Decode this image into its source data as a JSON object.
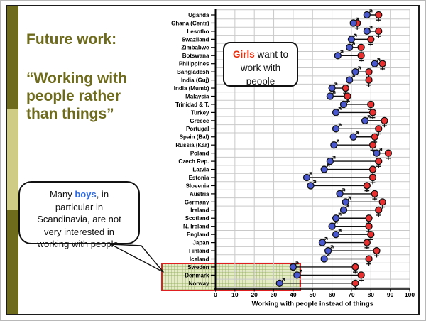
{
  "left_panel": {
    "title": "Future work:",
    "quote_lines": [
      "“Working with",
      "people rather",
      "than things”"
    ]
  },
  "speech_bubble": {
    "line1_pre": "Many ",
    "line1_bold": "boys",
    "line1_post": ", in",
    "line2": "particular in",
    "line3": "Scandinavia, are not",
    "line4": "very interested in",
    "line5": "working with people."
  },
  "girls_callout": {
    "line1_bold": "Girls",
    "line1_rest": " want to",
    "line2": "work with",
    "line3": "people"
  },
  "colors": {
    "accent_dark": "#6e6b1d",
    "accent_light": "#cfcc85",
    "boys_marker": "#4a58cf",
    "girls_marker": "#e93030",
    "boys_text": "#2f6be0",
    "girls_text": "#e5300f",
    "highlight_border": "#e02020",
    "gridline": "#c9c9c9"
  },
  "chart_data": {
    "type": "scatter",
    "subtype": "dumbbell",
    "xlabel": "Working with people instead of things",
    "xlim": [
      0,
      100
    ],
    "xticks": [
      0,
      10,
      20,
      30,
      40,
      50,
      60,
      70,
      80,
      90,
      100
    ],
    "grid": true,
    "categories": [
      "Uganda",
      "Ghana (Centr)",
      "Lesotho",
      "Swaziland",
      "Zimbabwe",
      "Botswana",
      "Philippines",
      "Bangladesh",
      "India (Guj)",
      "India (Mumb)",
      "Malaysia",
      "Trinidad & T.",
      "Turkey",
      "Greece",
      "Portugal",
      "Spain (Bal)",
      "Russia (Kar)",
      "Poland",
      "Czech Rep.",
      "Latvia",
      "Estonia",
      "Slovenia",
      "Austria",
      "Germany",
      "Ireland",
      "Scotland",
      "N. Ireland",
      "England",
      "Japan",
      "Finland",
      "Iceland",
      "Sweden",
      "Denmark",
      "Norway"
    ],
    "series": [
      {
        "name": "Boys",
        "symbol": "male",
        "color": "#4a58cf",
        "values": [
          78,
          71,
          78,
          70,
          69,
          63,
          82,
          72,
          69,
          60,
          59,
          66,
          62,
          77,
          62,
          71,
          61,
          83,
          59,
          56,
          47,
          49,
          64,
          67,
          66,
          62,
          60,
          62,
          55,
          58,
          56,
          40,
          42,
          33
        ]
      },
      {
        "name": "Girls",
        "symbol": "female",
        "color": "#e93030",
        "values": [
          84,
          73,
          84,
          80,
          75,
          75,
          86,
          79,
          79,
          67,
          68,
          80,
          81,
          87,
          84,
          82,
          81,
          89,
          84,
          81,
          81,
          78,
          82,
          86,
          84,
          79,
          79,
          80,
          78,
          83,
          79,
          72,
          75,
          72
        ]
      }
    ],
    "highlighted_categories": [
      "Sweden",
      "Denmark",
      "Norway"
    ]
  }
}
